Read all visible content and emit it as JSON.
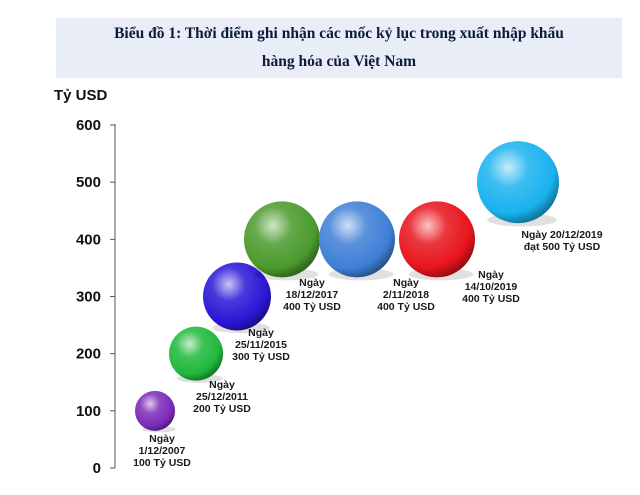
{
  "title": {
    "line1": "Biểu đồ 1: Thời điểm ghi nhận các mốc kỷ lục trong xuất nhập khẩu",
    "line2": "hàng hóa của Việt Nam"
  },
  "chart_data": {
    "type": "scatter",
    "title": "Biểu đồ 1: Thời điểm ghi nhận các mốc kỷ lục trong xuất nhập khẩu hàng hóa của Việt Nam",
    "ylabel": "Tỷ USD",
    "ylim": [
      0,
      600
    ],
    "yticks": [
      "0",
      "100",
      "200",
      "300",
      "400",
      "500",
      "600"
    ],
    "grid": false,
    "points": [
      {
        "date": "1/12/2007",
        "value": 100,
        "color": "#7a2ab8",
        "note": [
          "Ngày",
          "1/12/2007",
          "100 Tỷ USD"
        ]
      },
      {
        "date": "25/12/2011",
        "value": 200,
        "color": "#1fb83a",
        "note": [
          "Ngày",
          "25/12/2011",
          "200 Tỷ USD"
        ]
      },
      {
        "date": "25/11/2015",
        "value": 300,
        "color": "#2a16d6",
        "note": [
          "Ngày",
          "25/11/2015",
          "300 Tỷ USD"
        ]
      },
      {
        "date": "18/12/2017",
        "value": 400,
        "color": "#4a9a2c",
        "note": [
          "Ngày",
          "18/12/2017",
          "400 Tỷ USD"
        ]
      },
      {
        "date": "2/11/2018",
        "value": 400,
        "color": "#3f7fd6",
        "note": [
          "Ngày",
          "2/11/2018",
          "400 Tỷ USD"
        ]
      },
      {
        "date": "14/10/2019",
        "value": 400,
        "color": "#e8141c",
        "note": [
          "Ngày",
          "14/10/2019",
          "400 Tỷ USD"
        ]
      },
      {
        "date": "20/12/2019",
        "value": 500,
        "color": "#19b2ee",
        "note": [
          "Ngày 20/12/2019",
          "đạt 500 Tỷ USD"
        ]
      }
    ]
  }
}
